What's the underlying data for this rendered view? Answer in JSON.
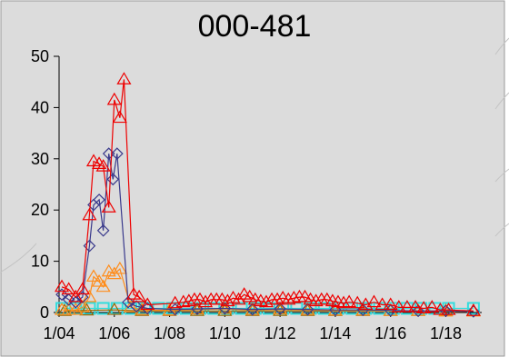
{
  "chart_data": {
    "type": "line",
    "title": "000-481",
    "xlabel": "",
    "ylabel": "",
    "xlim": [
      4,
      19.3
    ],
    "ylim": [
      0,
      50
    ],
    "y_ticks": [
      0,
      10,
      20,
      30,
      40,
      50
    ],
    "x_ticks": [
      {
        "value": 4,
        "label": "1/04"
      },
      {
        "value": 6,
        "label": "1/06"
      },
      {
        "value": 8,
        "label": "1/08"
      },
      {
        "value": 10,
        "label": "1/10"
      },
      {
        "value": 12,
        "label": "1/12"
      },
      {
        "value": 14,
        "label": "1/14"
      },
      {
        "value": 16,
        "label": "1/16"
      },
      {
        "value": 18,
        "label": "1/18"
      }
    ],
    "grid": false,
    "legend": "none",
    "series": [
      {
        "marker": "triangle",
        "color": "#ee0000",
        "points": [
          [
            4.1,
            5
          ],
          [
            4.35,
            4.5
          ],
          [
            4.6,
            3
          ],
          [
            4.85,
            4.5
          ],
          [
            5.1,
            19
          ],
          [
            5.25,
            29.5
          ],
          [
            5.45,
            29
          ],
          [
            5.6,
            28.5
          ],
          [
            5.8,
            20.5
          ],
          [
            6.0,
            41.5
          ],
          [
            6.2,
            38
          ],
          [
            6.35,
            45.5
          ],
          [
            6.7,
            3.5
          ],
          [
            6.9,
            3
          ],
          [
            7.2,
            1.5
          ],
          [
            8.2,
            1.8
          ],
          [
            8.5,
            2
          ],
          [
            8.7,
            2.2
          ],
          [
            8.9,
            2.5
          ],
          [
            9.1,
            2.5
          ],
          [
            9.3,
            2
          ],
          [
            9.5,
            2.5
          ],
          [
            9.7,
            2.5
          ],
          [
            9.9,
            2.5
          ],
          [
            10.1,
            2.2
          ],
          [
            10.3,
            2.8
          ],
          [
            10.5,
            2.5
          ],
          [
            10.7,
            3.5
          ],
          [
            10.9,
            3
          ],
          [
            11.1,
            2.5
          ],
          [
            11.3,
            2.2
          ],
          [
            11.5,
            2
          ],
          [
            11.7,
            2.5
          ],
          [
            11.9,
            2.5
          ],
          [
            12.1,
            2.8
          ],
          [
            12.3,
            2.5
          ],
          [
            12.5,
            2.8
          ],
          [
            12.7,
            3
          ],
          [
            12.9,
            3
          ],
          [
            13.1,
            2.5
          ],
          [
            13.3,
            2.2
          ],
          [
            13.5,
            2.5
          ],
          [
            13.7,
            2.5
          ],
          [
            13.9,
            2.2
          ],
          [
            14.1,
            2
          ],
          [
            14.3,
            1.8
          ],
          [
            14.5,
            2
          ],
          [
            14.8,
            1.8
          ],
          [
            15.1,
            1.5
          ],
          [
            15.4,
            2
          ],
          [
            15.7,
            1.5
          ],
          [
            16.0,
            1.5
          ],
          [
            16.3,
            1
          ],
          [
            16.6,
            1
          ],
          [
            16.9,
            1
          ],
          [
            17.2,
            0.8
          ],
          [
            17.5,
            1
          ],
          [
            17.8,
            0.5
          ],
          [
            18.1,
            0.5
          ],
          [
            19.0,
            0.3
          ]
        ]
      },
      {
        "marker": "diamond",
        "color": "#3a3a8c",
        "points": [
          [
            4.1,
            3.5
          ],
          [
            4.35,
            2.5
          ],
          [
            4.6,
            2
          ],
          [
            4.85,
            3
          ],
          [
            5.1,
            13
          ],
          [
            5.25,
            21
          ],
          [
            5.45,
            22
          ],
          [
            5.6,
            16
          ],
          [
            5.8,
            31
          ],
          [
            5.95,
            26
          ],
          [
            6.1,
            31
          ],
          [
            6.5,
            2
          ],
          [
            6.8,
            1.2
          ],
          [
            7.2,
            0.8
          ],
          [
            8.2,
            0.6
          ],
          [
            9.0,
            0.7
          ],
          [
            10.0,
            0.8
          ],
          [
            11.0,
            0.6
          ],
          [
            12.0,
            0.7
          ],
          [
            13.0,
            0.6
          ],
          [
            14.0,
            0.5
          ],
          [
            15.0,
            0.5
          ],
          [
            16.0,
            0.4
          ],
          [
            17.0,
            0.3
          ],
          [
            18.0,
            0.3
          ],
          [
            19.0,
            0.2
          ]
        ]
      },
      {
        "marker": "triangle",
        "color": "#ff8c1a",
        "points": [
          [
            4.1,
            0.5
          ],
          [
            4.35,
            0.5
          ],
          [
            4.6,
            0.5
          ],
          [
            4.85,
            1
          ],
          [
            5.1,
            3
          ],
          [
            5.25,
            7
          ],
          [
            5.45,
            6
          ],
          [
            5.6,
            5
          ],
          [
            5.8,
            8
          ],
          [
            6.0,
            7.5
          ],
          [
            6.2,
            8.5
          ],
          [
            6.6,
            1
          ],
          [
            7.0,
            0.5
          ],
          [
            8.0,
            0.4
          ],
          [
            9.0,
            0.6
          ],
          [
            10.0,
            0.7
          ],
          [
            11.0,
            0.5
          ],
          [
            12.0,
            0.6
          ],
          [
            13.0,
            0.5
          ],
          [
            14.0,
            0.4
          ],
          [
            15.0,
            0.4
          ],
          [
            16.0,
            0.3
          ],
          [
            17.0,
            0.3
          ],
          [
            18.0,
            0.2
          ],
          [
            19.0,
            0.2
          ]
        ]
      },
      {
        "marker": "square",
        "color": "#33dddd",
        "points": [
          [
            4.1,
            0.8
          ],
          [
            4.6,
            0.8
          ],
          [
            5.1,
            0.8
          ],
          [
            5.6,
            0.8
          ],
          [
            6.1,
            0.8
          ],
          [
            6.6,
            0.8
          ],
          [
            7.1,
            0.8
          ],
          [
            7.6,
            0.8
          ],
          [
            8.1,
            0.8
          ],
          [
            8.6,
            0.8
          ],
          [
            9.1,
            0.8
          ],
          [
            9.6,
            0.8
          ],
          [
            10.1,
            0.8
          ],
          [
            10.6,
            0.8
          ],
          [
            11.1,
            0.8
          ],
          [
            11.6,
            0.8
          ],
          [
            12.1,
            0.8
          ],
          [
            12.6,
            0.8
          ],
          [
            13.1,
            0.8
          ],
          [
            13.6,
            0.8
          ],
          [
            14.1,
            0.8
          ],
          [
            14.6,
            0.8
          ],
          [
            15.1,
            0.8
          ],
          [
            15.6,
            0.8
          ],
          [
            16.1,
            0.8
          ],
          [
            16.6,
            0.8
          ],
          [
            17.1,
            0.8
          ],
          [
            17.6,
            0.8
          ],
          [
            18.1,
            0.8
          ],
          [
            19.0,
            0.8
          ]
        ]
      },
      {
        "marker": "triangle",
        "color": "#996600",
        "points": [
          [
            4.2,
            0.3
          ],
          [
            5.0,
            0.4
          ],
          [
            6.0,
            0.5
          ],
          [
            7.0,
            0.3
          ],
          [
            8.0,
            0.3
          ],
          [
            9.0,
            0.3
          ],
          [
            10.0,
            0.3
          ],
          [
            11.0,
            0.3
          ],
          [
            12.0,
            0.3
          ],
          [
            13.0,
            0.3
          ],
          [
            14.0,
            0.3
          ],
          [
            15.0,
            0.3
          ],
          [
            16.0,
            0.3
          ],
          [
            17.0,
            0.3
          ],
          [
            18.0,
            0.3
          ],
          [
            19.0,
            0.3
          ]
        ]
      }
    ]
  }
}
